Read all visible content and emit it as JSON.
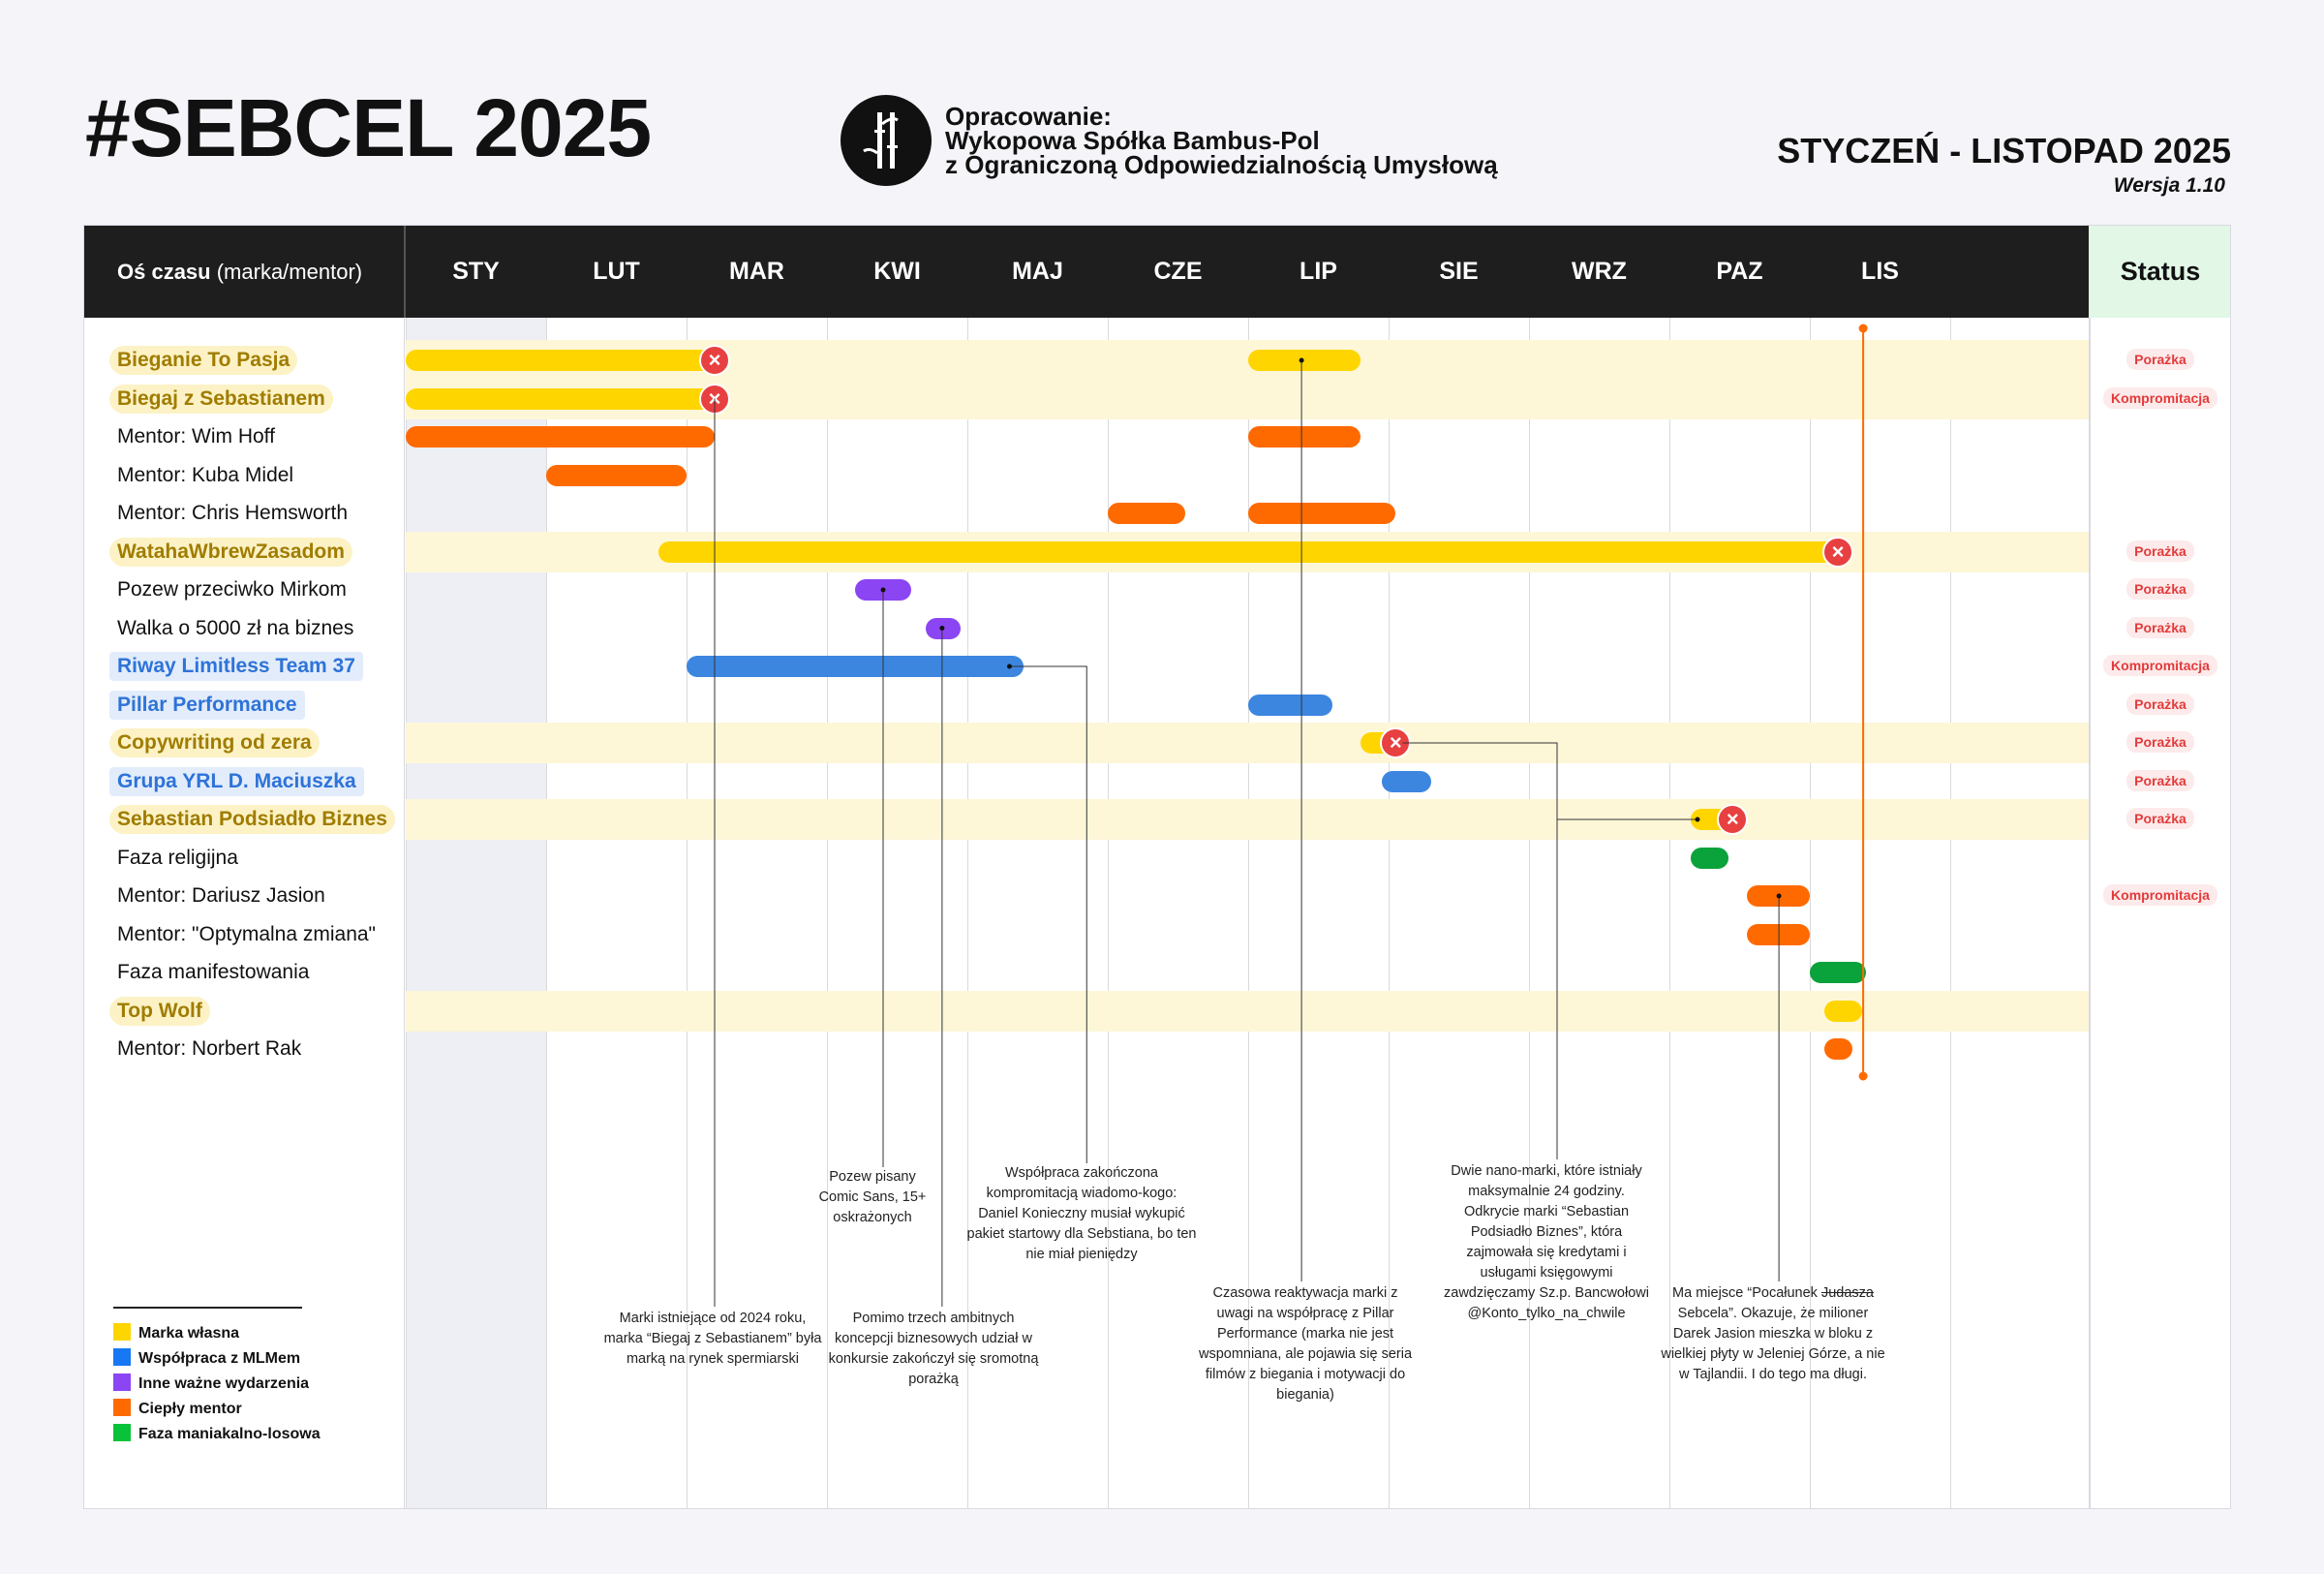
{
  "header": {
    "title": "#SEBCEL 2025",
    "author_lines": [
      "Opracowanie:",
      "Wykopowa Spółka Bambus-Pol",
      "z Ograniczoną Odpowiedzialnością Umysłową"
    ],
    "period": "STYCZEŃ - LISTOPAD 2025",
    "version": "Wersja 1.10"
  },
  "axis": {
    "label_bold": "Oś czasu",
    "label_rest": "(marka/mentor)",
    "months": [
      "STY",
      "LUT",
      "MAR",
      "KWI",
      "MAJ",
      "CZE",
      "LIP",
      "SIE",
      "WRZ",
      "PAZ",
      "LIS"
    ],
    "status_label": "Status"
  },
  "rows": [
    {
      "label": "Bieganie To Pasja",
      "kind": "own",
      "band": true,
      "status": "Porażka"
    },
    {
      "label": "Biegaj z Sebastianem",
      "kind": "own",
      "band": true,
      "status": "Kompromitacja"
    },
    {
      "label": "Mentor: Wim Hoff",
      "kind": "plain",
      "band": false,
      "status": ""
    },
    {
      "label": "Mentor: Kuba Midel",
      "kind": "plain",
      "band": false,
      "status": ""
    },
    {
      "label": "Mentor: Chris Hemsworth",
      "kind": "plain",
      "band": false,
      "status": ""
    },
    {
      "label": "WatahaWbrewZasadom",
      "kind": "own",
      "band": true,
      "status": "Porażka"
    },
    {
      "label": "Pozew przeciwko Mirkom",
      "kind": "plain",
      "band": false,
      "status": "Porażka"
    },
    {
      "label": "Walka o 5000 zł na biznes",
      "kind": "plain",
      "band": false,
      "status": "Porażka"
    },
    {
      "label": "Riway Limitless Team 37",
      "kind": "mlm",
      "band": false,
      "status": "Kompromitacja"
    },
    {
      "label": "Pillar Performance",
      "kind": "mlm",
      "band": false,
      "status": "Porażka"
    },
    {
      "label": "Copywriting od zera",
      "kind": "own",
      "band": true,
      "status": "Porażka"
    },
    {
      "label": "Grupa YRL D. Maciuszka",
      "kind": "mlm",
      "band": false,
      "status": "Porażka"
    },
    {
      "label": "Sebastian Podsiadło Biznes",
      "kind": "own",
      "band": true,
      "status": "Porażka"
    },
    {
      "label": "Faza religijna",
      "kind": "plain",
      "band": false,
      "status": ""
    },
    {
      "label": "Mentor: Dariusz Jasion",
      "kind": "plain",
      "band": false,
      "status": "Kompromitacja"
    },
    {
      "label": "Mentor: \"Optymalna zmiana\"",
      "kind": "plain",
      "band": false,
      "status": ""
    },
    {
      "label": "Faza manifestowania",
      "kind": "plain",
      "band": false,
      "status": ""
    },
    {
      "label": "Top Wolf",
      "kind": "own",
      "band": true,
      "status": ""
    },
    {
      "label": "Mentor: Norbert Rak",
      "kind": "plain",
      "band": false,
      "status": ""
    }
  ],
  "bars": [
    {
      "row": 0,
      "start": 0.0,
      "end": 2.2,
      "color": "yellow",
      "fail": true
    },
    {
      "row": 0,
      "start": 6.0,
      "end": 6.8,
      "color": "yellow",
      "fail": false
    },
    {
      "row": 1,
      "start": 0.0,
      "end": 2.2,
      "color": "yellow",
      "fail": true
    },
    {
      "row": 2,
      "start": 0.0,
      "end": 2.2,
      "color": "orange",
      "fail": false
    },
    {
      "row": 2,
      "start": 6.0,
      "end": 6.8,
      "color": "orange",
      "fail": false
    },
    {
      "row": 3,
      "start": 1.0,
      "end": 2.0,
      "color": "orange",
      "fail": false
    },
    {
      "row": 4,
      "start": 5.0,
      "end": 5.55,
      "color": "orange",
      "fail": false
    },
    {
      "row": 4,
      "start": 6.0,
      "end": 7.05,
      "color": "orange",
      "fail": false
    },
    {
      "row": 5,
      "start": 1.8,
      "end": 10.2,
      "color": "yellow",
      "fail": true
    },
    {
      "row": 6,
      "start": 3.2,
      "end": 3.6,
      "color": "purple",
      "fail": false
    },
    {
      "row": 7,
      "start": 3.7,
      "end": 3.95,
      "color": "purple",
      "fail": false
    },
    {
      "row": 8,
      "start": 2.0,
      "end": 4.4,
      "color": "blue",
      "fail": false
    },
    {
      "row": 9,
      "start": 6.0,
      "end": 6.6,
      "color": "blue",
      "fail": false
    },
    {
      "row": 10,
      "start": 6.8,
      "end": 7.05,
      "color": "yellow",
      "fail": true
    },
    {
      "row": 11,
      "start": 6.95,
      "end": 7.3,
      "color": "blue",
      "fail": false
    },
    {
      "row": 12,
      "start": 9.15,
      "end": 9.45,
      "color": "yellow",
      "fail": true
    },
    {
      "row": 13,
      "start": 9.15,
      "end": 9.42,
      "color": "green",
      "fail": false
    },
    {
      "row": 14,
      "start": 9.55,
      "end": 10.0,
      "color": "orange",
      "fail": false
    },
    {
      "row": 15,
      "start": 9.55,
      "end": 10.0,
      "color": "orange",
      "fail": false
    },
    {
      "row": 16,
      "start": 10.0,
      "end": 10.4,
      "color": "green",
      "fail": false
    },
    {
      "row": 17,
      "start": 10.1,
      "end": 10.37,
      "color": "yellow",
      "fail": false
    },
    {
      "row": 18,
      "start": 10.1,
      "end": 10.3,
      "color": "orange",
      "fail": false
    }
  ],
  "notes": {
    "n1": "Marki istniejące od 2024 roku, marka “Biegaj z Sebastianem” była marką na rynek spermiarski",
    "n2": "Pozew pisany Comic Sans, 15+ oskrażonych",
    "n3": "Pomimo trzech ambitnych koncepcji biznesowych udział w konkursie zakończył się sromotną porażką",
    "n4": "Współpraca zakończona kompromitacją wiadomo-kogo: Daniel Konieczny musiał wykupić pakiet startowy dla Sebstiana, bo ten nie miał pieniędzy",
    "n5": "Czasowa reaktywacja marki z uwagi na współpracę z Pillar Performance (marka nie jest wspomniana, ale pojawia się seria filmów z biegania i motywacji do biegania)",
    "n6": "Dwie nano-marki, które istniały maksymalnie 24 godziny. Odkrycie marki “Sebastian Podsiadło Biznes”, która zajmowała się kredytami i usługami księgowymi zawdzięczamy Sz.p. Bancwołowi @Konto_tylko_na_chwile",
    "n7a": "Ma miejsce “Pocałunek ",
    "n7b": "Judasza",
    "n7c": " Sebcela”. Okazuje, że milioner Darek Jasion mieszka w bloku z wielkiej płyty w Jeleniej Górze, a nie w Tajlandii. I do tego ma długi."
  },
  "legend": [
    {
      "label": "Marka własna",
      "color": "#ffd500"
    },
    {
      "label": "Współpraca z MLMem",
      "color": "#1877f2"
    },
    {
      "label": "Inne ważne wydarzenia",
      "color": "#8b45f3"
    },
    {
      "label": "Ciepły mentor",
      "color": "#ff6a00"
    },
    {
      "label": "Faza maniakalno-losowa",
      "color": "#0ac23a"
    }
  ],
  "colors": {
    "yellow": "#ffd500",
    "orange": "#ff6a00",
    "purple": "#8b45f3",
    "blue": "#3c86e0",
    "green": "#0aa23a",
    "fail": "#e84040",
    "today_line": "#ff6a00"
  }
}
